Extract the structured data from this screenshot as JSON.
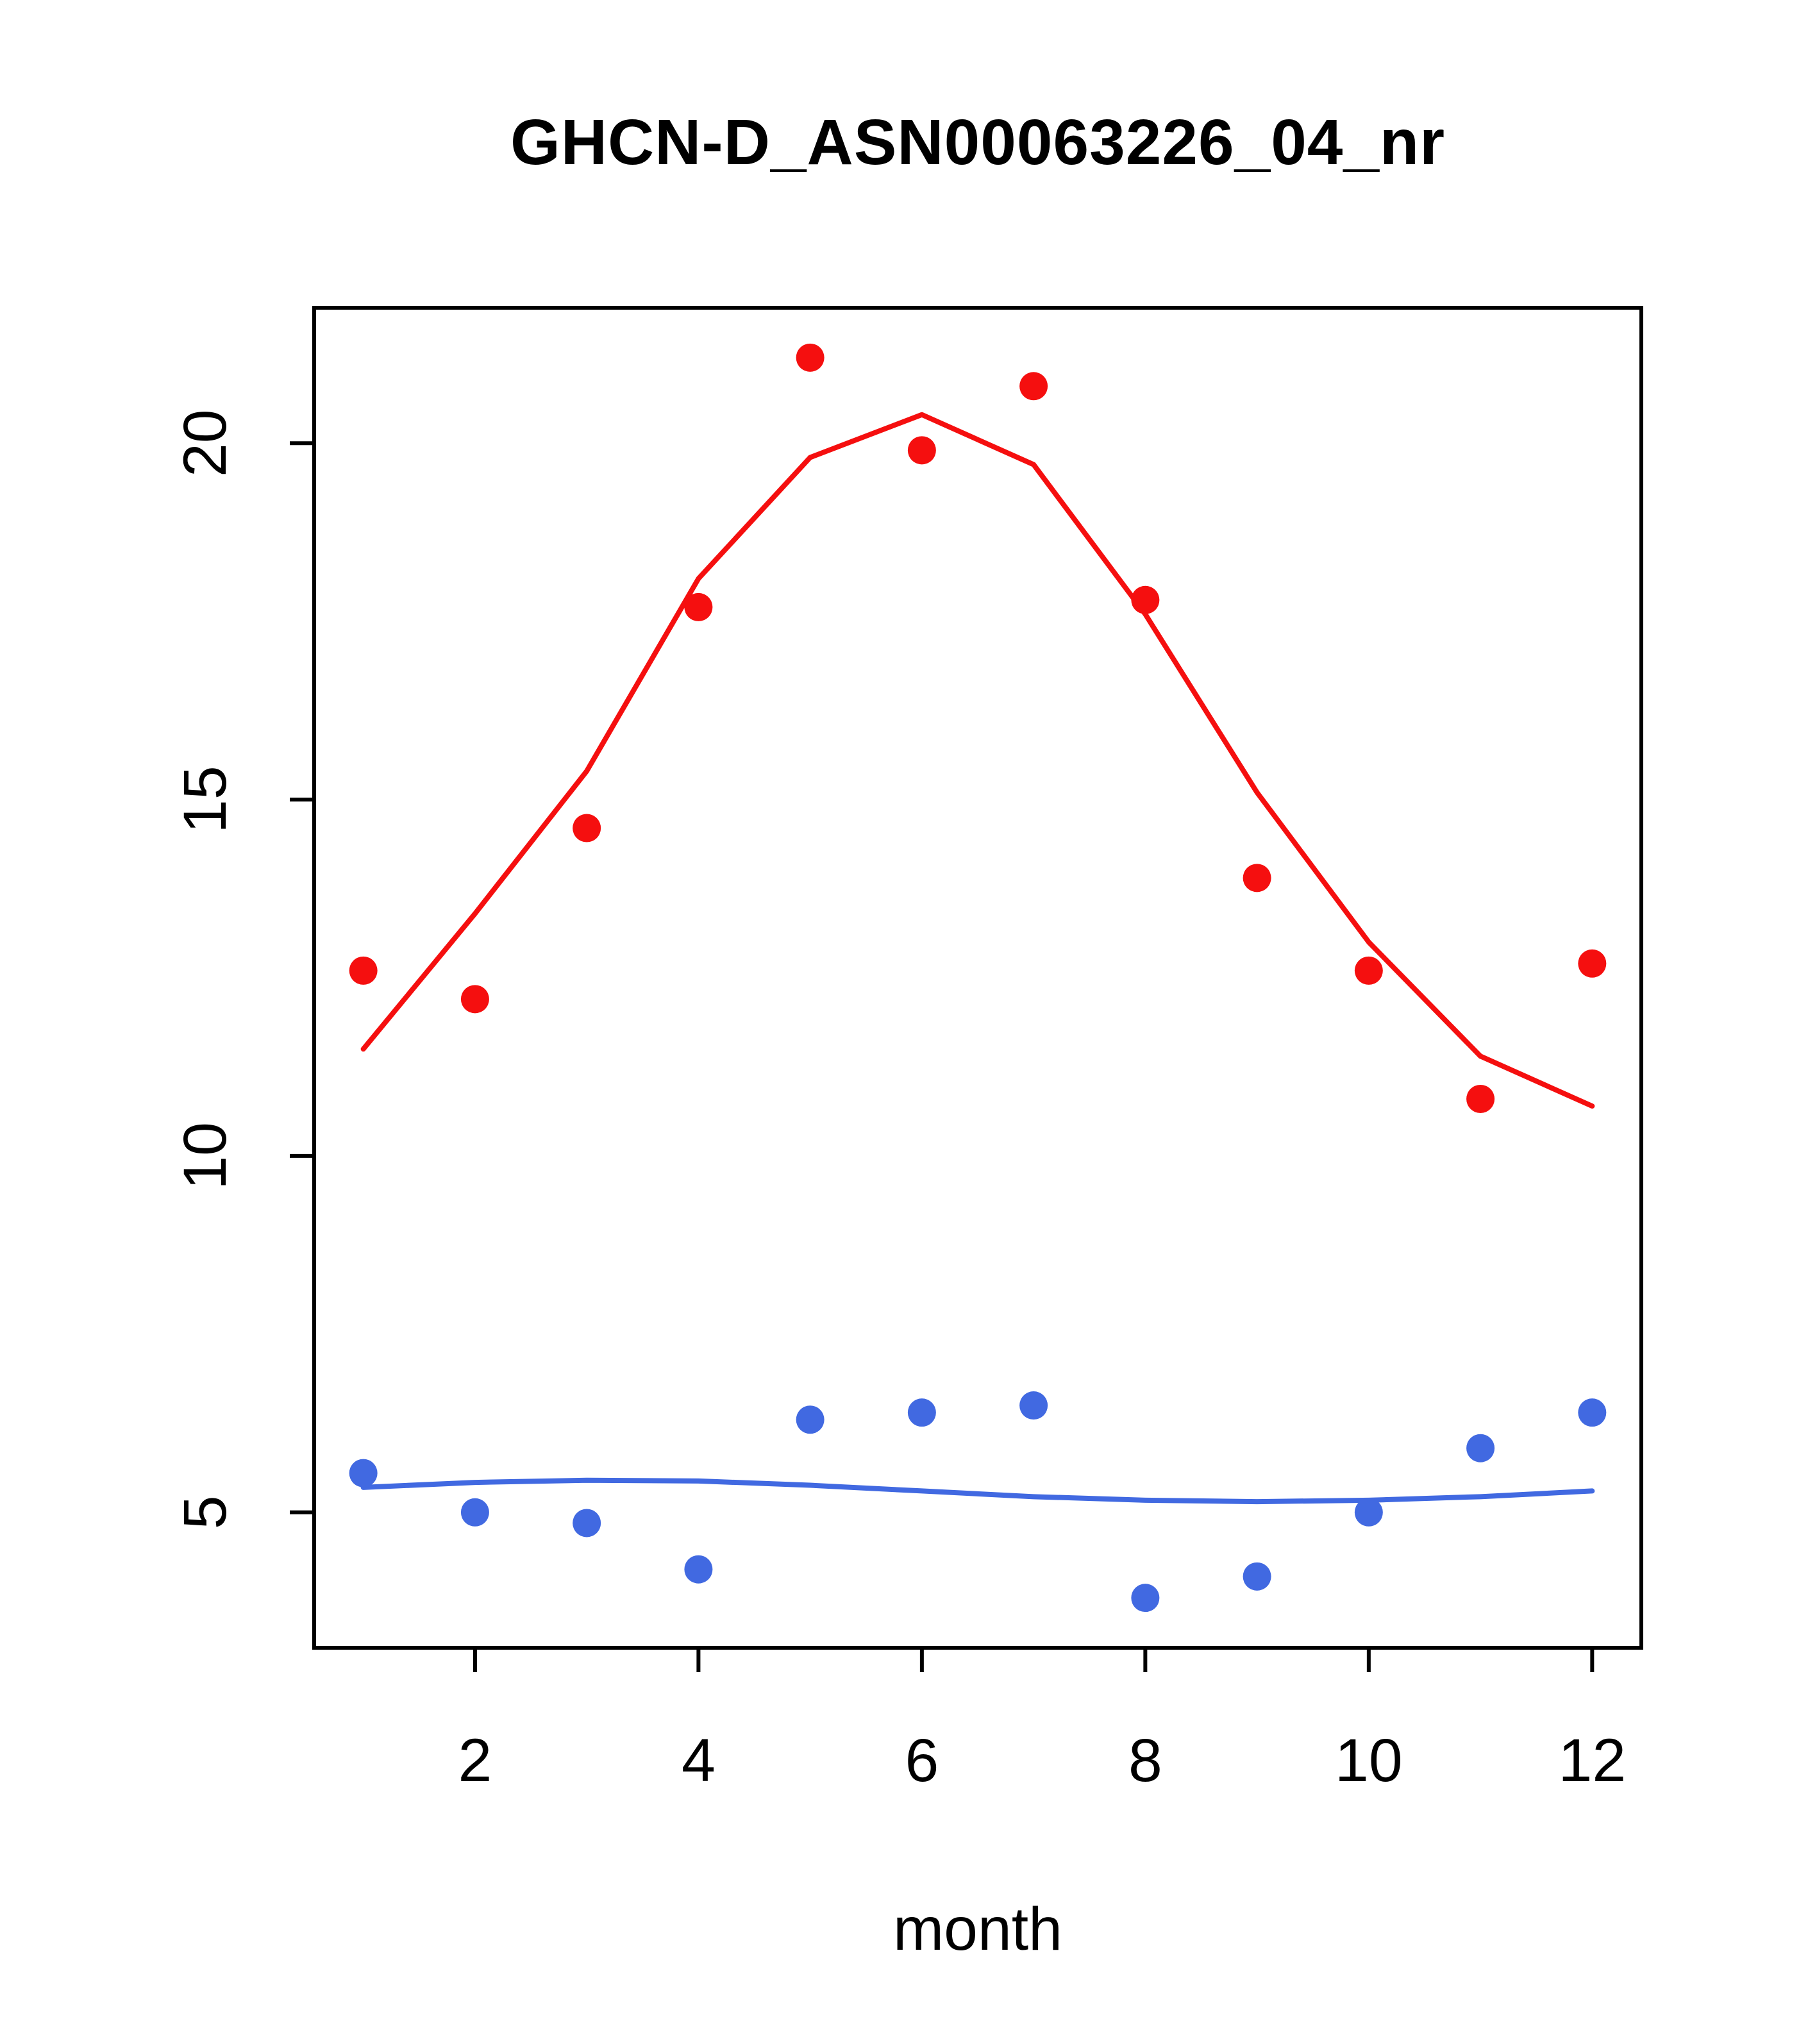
{
  "title": "GHCN-D_ASN00063226_04_nr",
  "chart_data": {
    "type": "scatter",
    "title": "GHCN-D_ASN00063226_04_nr",
    "xlabel": "month",
    "ylabel": "",
    "x": [
      1,
      2,
      3,
      4,
      5,
      6,
      7,
      8,
      9,
      10,
      11,
      12
    ],
    "xlim": [
      0.56,
      12.44
    ],
    "ylim": [
      3.1,
      21.9
    ],
    "xticks": [
      2,
      4,
      6,
      8,
      10,
      12
    ],
    "yticks": [
      5,
      10,
      15,
      20
    ],
    "grid": false,
    "legend": "none",
    "colors": {
      "tmax": "#f50f0f",
      "tmin": "#4169e1",
      "axis": "#000000"
    },
    "series": [
      {
        "name": "tmax-smooth-line",
        "type": "line",
        "color": "#f50f0f",
        "values": [
          11.5,
          13.4,
          15.4,
          18.1,
          19.8,
          20.4,
          19.7,
          17.6,
          15.1,
          13.0,
          11.4,
          10.7
        ]
      },
      {
        "name": "tmin-smooth-line",
        "type": "line",
        "color": "#4169e1",
        "values": [
          5.35,
          5.42,
          5.45,
          5.44,
          5.38,
          5.3,
          5.22,
          5.17,
          5.15,
          5.17,
          5.22,
          5.3
        ]
      },
      {
        "name": "tmax-points",
        "type": "points",
        "color": "#f50f0f",
        "values": [
          12.6,
          12.2,
          14.6,
          17.7,
          21.2,
          19.9,
          20.8,
          17.8,
          13.9,
          12.6,
          10.8,
          12.7
        ]
      },
      {
        "name": "tmin-points",
        "type": "points",
        "color": "#4169e1",
        "values": [
          5.55,
          5.0,
          4.85,
          4.2,
          6.3,
          6.4,
          6.5,
          3.8,
          4.1,
          5.0,
          5.9,
          6.4
        ]
      }
    ]
  }
}
